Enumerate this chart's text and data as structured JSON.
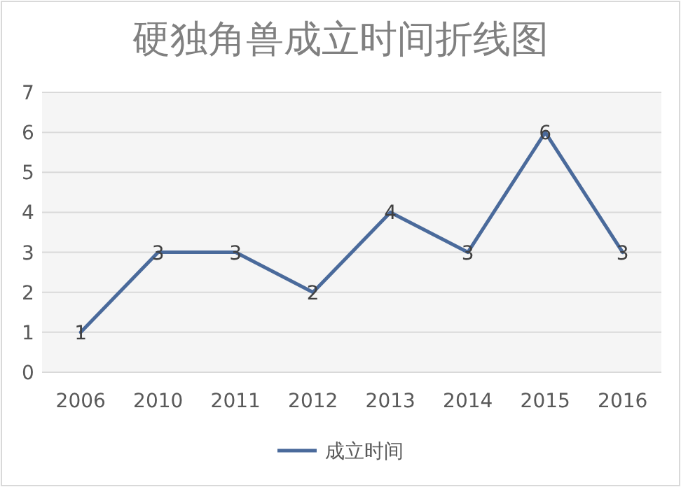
{
  "chart_data": {
    "type": "line",
    "title": "硬独角兽成立时间折线图",
    "categories": [
      "2006",
      "2010",
      "2011",
      "2012",
      "2013",
      "2014",
      "2015",
      "2016"
    ],
    "series": [
      {
        "name": "成立时间",
        "color": "#4a6a9b",
        "values": [
          1,
          3,
          3,
          2,
          4,
          3,
          6,
          3
        ]
      }
    ],
    "ylim": [
      0,
      7
    ],
    "yticks": [
      0,
      1,
      2,
      3,
      4,
      5,
      6,
      7
    ],
    "grid": "y",
    "legend": "bottom",
    "data_labels": true,
    "marker": "none",
    "line_style": "solid"
  }
}
